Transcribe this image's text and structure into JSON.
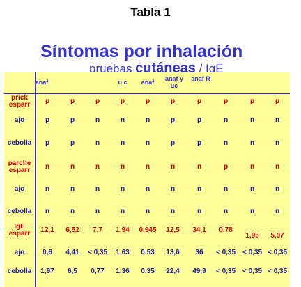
{
  "doc_title": "Tabla 1",
  "slide_title": "Síntomas por inhalación",
  "subtitle": {
    "pre": "pruebas ",
    "big": "cutáneas",
    "post": " / IgE"
  },
  "col_headers": [
    "anaf",
    "",
    "",
    "",
    "u c",
    "anaf",
    "anaf y uc",
    "anaf R",
    "",
    "",
    ""
  ],
  "rows": [
    {
      "label": "prick esparr",
      "color": "red",
      "values": [
        "p",
        "p",
        "p",
        "p",
        "p",
        "p",
        "p",
        "p",
        "p",
        "p"
      ]
    },
    {
      "label": "ajo",
      "color": "blue",
      "values": [
        "p",
        "p",
        "n",
        "n",
        "n",
        "p",
        "p",
        "n",
        "n",
        "n"
      ]
    },
    {
      "label": "cebolla",
      "color": "blue",
      "values": [
        "p",
        "p",
        "n",
        "n",
        "n",
        "p",
        "p",
        "n",
        "n",
        "n"
      ]
    },
    {
      "label": "parche esparr",
      "color": "red",
      "values": [
        "n",
        "n",
        "n",
        "n",
        "n",
        "n",
        "n",
        "p",
        "n",
        "n"
      ]
    },
    {
      "label": "ajo",
      "color": "blue",
      "values": [
        "n",
        "n",
        "n",
        "n",
        "n",
        "n",
        "n",
        "n",
        "n",
        "n"
      ]
    },
    {
      "label": "cebolla",
      "color": "blue",
      "values": [
        "n",
        "n",
        "n",
        "n",
        "n",
        "n",
        "n",
        "n",
        "n",
        "n"
      ]
    },
    {
      "label": "IgE esparr",
      "color": "red",
      "values": [
        "12,1",
        "6,52",
        "7,7",
        "1,94",
        "0,945",
        "12,5",
        "34,1",
        "0,78",
        "1,95",
        "5,97"
      ]
    },
    {
      "label": "ajo",
      "color": "blue",
      "values": [
        "0,6",
        "4,41",
        "< 0,35",
        "1,63",
        "0,53",
        "13,6",
        "36",
        "< 0,35",
        "< 0,35",
        "< 0,35"
      ]
    },
    {
      "label": "cebolla",
      "color": "blue",
      "values": [
        "1,97",
        "6,5",
        "0,77",
        "1,36",
        "0,35",
        "22,4",
        "49,9",
        "< 0,35",
        "< 0,35",
        "< 0,35"
      ]
    }
  ]
}
